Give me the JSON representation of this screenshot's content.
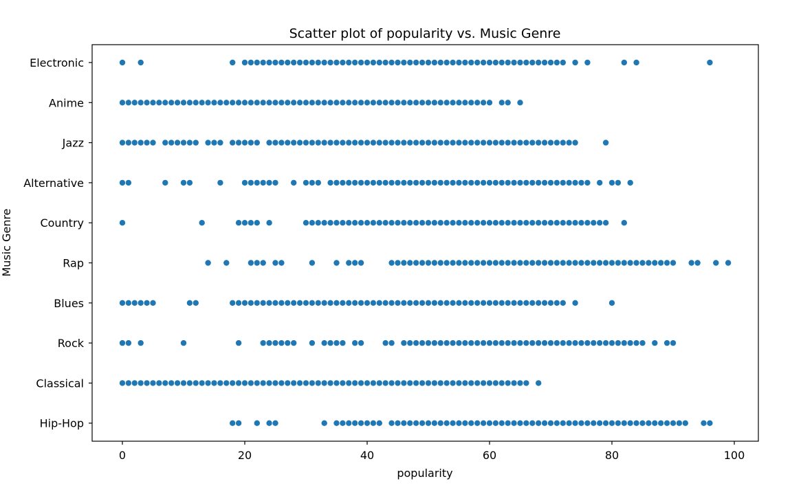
{
  "chart_data": {
    "type": "scatter",
    "title": "Scatter plot of popularity vs. Music Genre",
    "xlabel": "popularity",
    "ylabel": "Music Genre",
    "xlim": [
      -5,
      104
    ],
    "xticks": [
      0,
      20,
      40,
      60,
      80,
      100
    ],
    "grid": false,
    "legend": "none",
    "marker_color": "#1f77b4",
    "categories": [
      "Electronic",
      "Anime",
      "Jazz",
      "Alternative",
      "Country",
      "Rap",
      "Blues",
      "Rock",
      "Classical",
      "Hip-Hop"
    ],
    "series": [
      {
        "category": "Electronic",
        "x": [
          0,
          3,
          18,
          20,
          21,
          22,
          23,
          24,
          25,
          26,
          27,
          28,
          29,
          30,
          31,
          32,
          33,
          34,
          35,
          36,
          37,
          38,
          39,
          40,
          41,
          42,
          43,
          44,
          45,
          46,
          47,
          48,
          49,
          50,
          51,
          52,
          53,
          54,
          55,
          56,
          57,
          58,
          59,
          60,
          61,
          62,
          63,
          64,
          65,
          66,
          67,
          68,
          69,
          70,
          71,
          72,
          74,
          76,
          82,
          84,
          96
        ]
      },
      {
        "category": "Anime",
        "x": [
          0,
          1,
          2,
          3,
          4,
          5,
          6,
          7,
          8,
          9,
          10,
          11,
          12,
          13,
          14,
          15,
          16,
          17,
          18,
          19,
          20,
          21,
          22,
          23,
          24,
          25,
          26,
          27,
          28,
          29,
          30,
          31,
          32,
          33,
          34,
          35,
          36,
          37,
          38,
          39,
          40,
          41,
          42,
          43,
          44,
          45,
          46,
          47,
          48,
          49,
          50,
          51,
          52,
          53,
          54,
          55,
          56,
          57,
          58,
          59,
          60,
          62,
          63,
          65
        ]
      },
      {
        "category": "Jazz",
        "x": [
          0,
          1,
          2,
          3,
          4,
          5,
          7,
          8,
          9,
          10,
          11,
          12,
          14,
          15,
          16,
          18,
          19,
          20,
          21,
          22,
          24,
          25,
          26,
          27,
          28,
          29,
          30,
          31,
          32,
          33,
          34,
          35,
          36,
          37,
          38,
          39,
          40,
          41,
          42,
          43,
          44,
          45,
          46,
          47,
          48,
          49,
          50,
          51,
          52,
          53,
          54,
          55,
          56,
          57,
          58,
          59,
          60,
          61,
          62,
          63,
          64,
          65,
          66,
          67,
          68,
          69,
          70,
          71,
          72,
          73,
          74,
          79
        ]
      },
      {
        "category": "Alternative",
        "x": [
          0,
          1,
          7,
          10,
          11,
          16,
          20,
          21,
          22,
          23,
          24,
          25,
          28,
          30,
          31,
          32,
          34,
          35,
          36,
          37,
          38,
          39,
          40,
          41,
          42,
          43,
          44,
          45,
          46,
          47,
          48,
          49,
          50,
          51,
          52,
          53,
          54,
          55,
          56,
          57,
          58,
          59,
          60,
          61,
          62,
          63,
          64,
          65,
          66,
          67,
          68,
          69,
          70,
          71,
          72,
          73,
          74,
          75,
          76,
          78,
          80,
          81,
          83
        ]
      },
      {
        "category": "Country",
        "x": [
          0,
          13,
          19,
          20,
          21,
          22,
          24,
          30,
          31,
          32,
          33,
          34,
          35,
          36,
          37,
          38,
          39,
          40,
          41,
          42,
          43,
          44,
          45,
          46,
          47,
          48,
          49,
          50,
          51,
          52,
          53,
          54,
          55,
          56,
          57,
          58,
          59,
          60,
          61,
          62,
          63,
          64,
          65,
          66,
          67,
          68,
          69,
          70,
          71,
          72,
          73,
          74,
          75,
          76,
          77,
          78,
          79,
          82
        ]
      },
      {
        "category": "Rap",
        "x": [
          14,
          17,
          21,
          22,
          23,
          25,
          26,
          31,
          35,
          37,
          38,
          39,
          44,
          45,
          46,
          47,
          48,
          49,
          50,
          51,
          52,
          53,
          54,
          55,
          56,
          57,
          58,
          59,
          60,
          61,
          62,
          63,
          64,
          65,
          66,
          67,
          68,
          69,
          70,
          71,
          72,
          73,
          74,
          75,
          76,
          77,
          78,
          79,
          80,
          81,
          82,
          83,
          84,
          85,
          86,
          87,
          88,
          89,
          90,
          93,
          94,
          97,
          99
        ]
      },
      {
        "category": "Blues",
        "x": [
          0,
          1,
          2,
          3,
          4,
          5,
          11,
          12,
          18,
          19,
          20,
          21,
          22,
          23,
          24,
          25,
          26,
          27,
          28,
          29,
          30,
          31,
          32,
          33,
          34,
          35,
          36,
          37,
          38,
          39,
          40,
          41,
          42,
          43,
          44,
          45,
          46,
          47,
          48,
          49,
          50,
          51,
          52,
          53,
          54,
          55,
          56,
          57,
          58,
          59,
          60,
          61,
          62,
          63,
          64,
          65,
          66,
          67,
          68,
          69,
          70,
          71,
          72,
          74,
          80
        ]
      },
      {
        "category": "Rock",
        "x": [
          0,
          1,
          3,
          10,
          19,
          23,
          24,
          25,
          26,
          27,
          28,
          31,
          33,
          34,
          35,
          36,
          38,
          39,
          43,
          44,
          46,
          47,
          48,
          49,
          50,
          51,
          52,
          53,
          54,
          55,
          56,
          57,
          58,
          59,
          60,
          61,
          62,
          63,
          64,
          65,
          66,
          67,
          68,
          69,
          70,
          71,
          72,
          73,
          74,
          75,
          76,
          77,
          78,
          79,
          80,
          81,
          82,
          83,
          84,
          85,
          87,
          89,
          90
        ]
      },
      {
        "category": "Classical",
        "x": [
          0,
          1,
          2,
          3,
          4,
          5,
          6,
          7,
          8,
          9,
          10,
          11,
          12,
          13,
          14,
          15,
          16,
          17,
          18,
          19,
          20,
          21,
          22,
          23,
          24,
          25,
          26,
          27,
          28,
          29,
          30,
          31,
          32,
          33,
          34,
          35,
          36,
          37,
          38,
          39,
          40,
          41,
          42,
          43,
          44,
          45,
          46,
          47,
          48,
          49,
          50,
          51,
          52,
          53,
          54,
          55,
          56,
          57,
          58,
          59,
          60,
          61,
          62,
          63,
          64,
          65,
          66,
          68
        ]
      },
      {
        "category": "Hip-Hop",
        "x": [
          18,
          19,
          22,
          24,
          25,
          33,
          35,
          36,
          37,
          38,
          39,
          40,
          41,
          42,
          44,
          45,
          46,
          47,
          48,
          49,
          50,
          51,
          52,
          53,
          54,
          55,
          56,
          57,
          58,
          59,
          60,
          61,
          62,
          63,
          64,
          65,
          66,
          67,
          68,
          69,
          70,
          71,
          72,
          73,
          74,
          75,
          76,
          77,
          78,
          79,
          80,
          81,
          82,
          83,
          84,
          85,
          86,
          87,
          88,
          89,
          90,
          91,
          92,
          95,
          96
        ]
      }
    ]
  }
}
